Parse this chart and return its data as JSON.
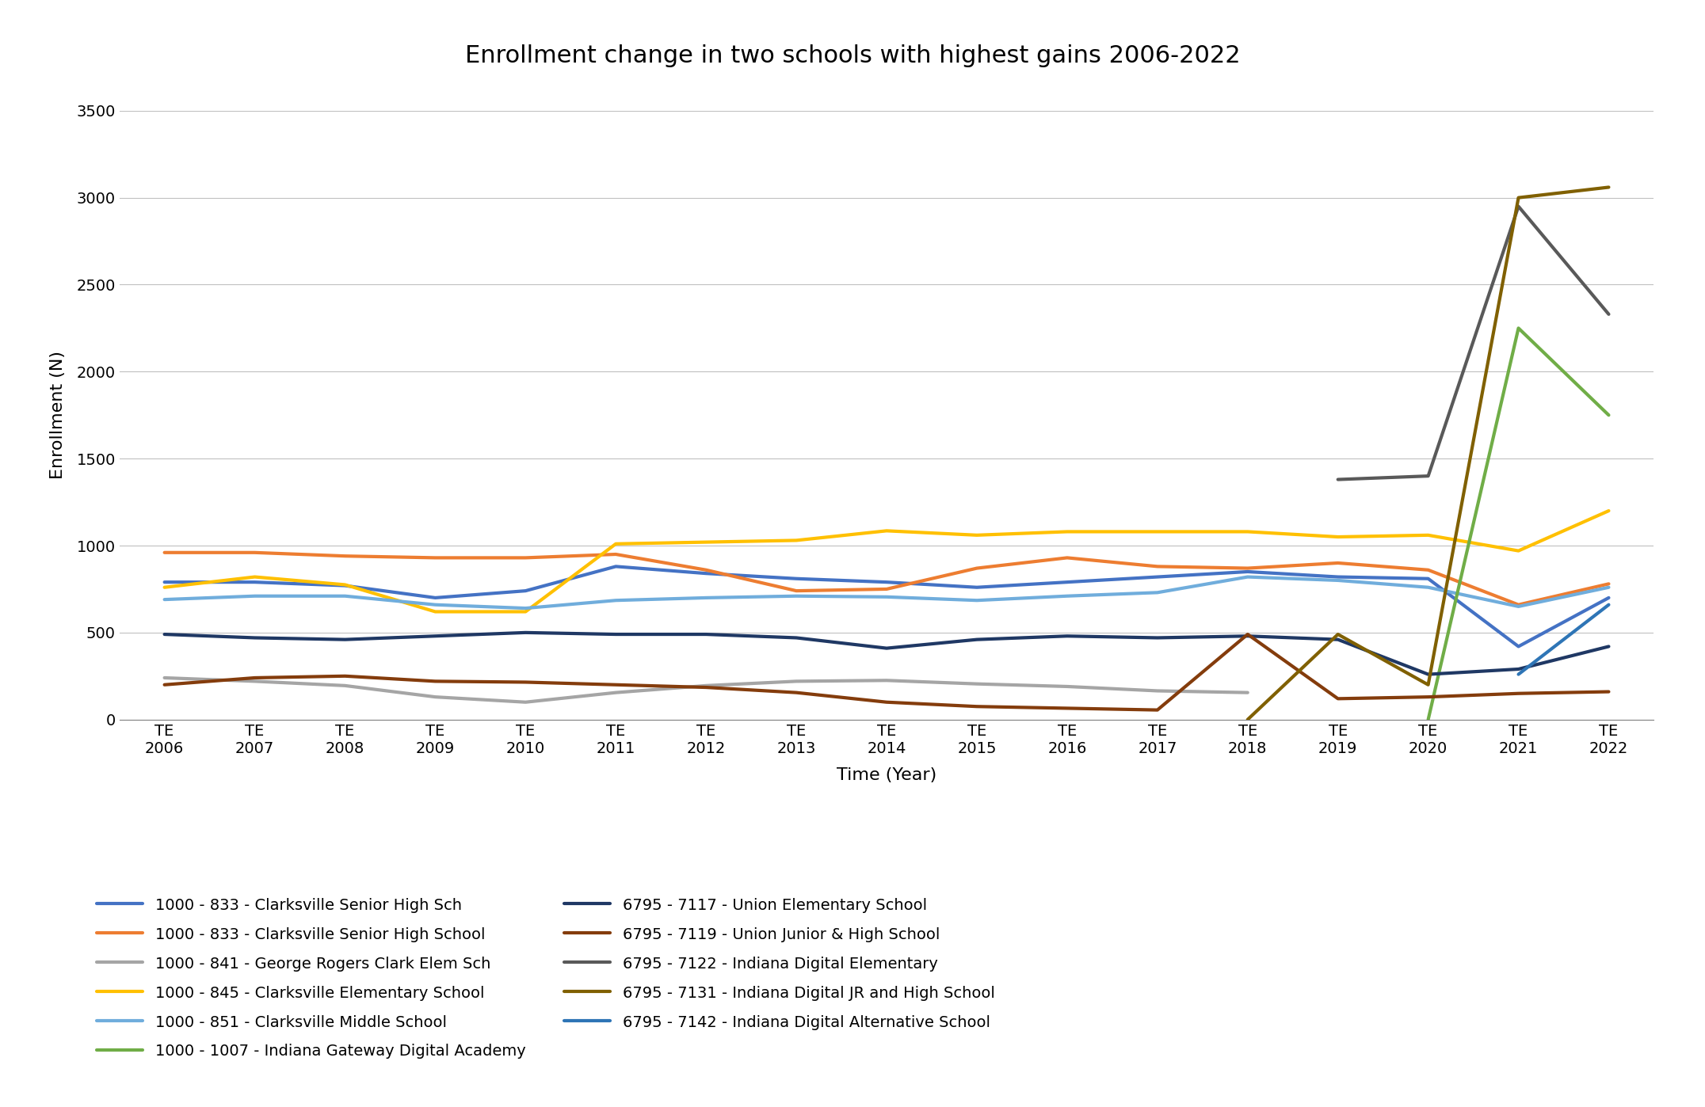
{
  "title": "Enrollment change in two schools with highest gains 2006-2022",
  "xlabel": "Time (Year)",
  "ylabel": "Enrollment (N)",
  "year_vals": [
    2006,
    2007,
    2008,
    2009,
    2010,
    2011,
    2012,
    2013,
    2014,
    2015,
    2016,
    2017,
    2018,
    2019,
    2020,
    2021,
    2022
  ],
  "ylim": [
    0,
    3500
  ],
  "yticks": [
    0,
    500,
    1000,
    1500,
    2000,
    2500,
    3000,
    3500
  ],
  "series": [
    {
      "label": "1000 - 833 - Clarksville Senior High Sch",
      "color": "#4472C4",
      "linewidth": 3.0,
      "data": [
        790,
        790,
        770,
        700,
        740,
        880,
        840,
        810,
        790,
        760,
        790,
        820,
        850,
        820,
        810,
        420,
        700
      ]
    },
    {
      "label": "1000 - 833 - Clarksville Senior High School",
      "color": "#ED7D31",
      "linewidth": 3.0,
      "data": [
        960,
        960,
        940,
        930,
        930,
        950,
        860,
        740,
        750,
        870,
        930,
        880,
        870,
        900,
        860,
        660,
        780
      ]
    },
    {
      "label": "1000 - 841 - George Rogers Clark Elem Sch",
      "color": "#A5A5A5",
      "linewidth": 3.0,
      "data": [
        240,
        220,
        195,
        130,
        100,
        155,
        195,
        220,
        225,
        205,
        190,
        165,
        155,
        null,
        null,
        null,
        null
      ]
    },
    {
      "label": "1000 - 845 - Clarksville Elementary School",
      "color": "#FFC000",
      "linewidth": 3.0,
      "data": [
        760,
        820,
        775,
        620,
        620,
        1010,
        1020,
        1030,
        1085,
        1060,
        1080,
        1080,
        1080,
        1050,
        1060,
        970,
        1200
      ]
    },
    {
      "label": "1000 - 851 - Clarksville Middle School",
      "color": "#70ADDC",
      "linewidth": 3.0,
      "data": [
        690,
        710,
        710,
        660,
        640,
        685,
        700,
        710,
        705,
        685,
        710,
        730,
        820,
        800,
        760,
        650,
        760
      ]
    },
    {
      "label": "1000 - 1007 - Indiana Gateway Digital Academy",
      "color": "#70AD47",
      "linewidth": 3.0,
      "data": [
        null,
        null,
        null,
        null,
        null,
        null,
        null,
        null,
        null,
        null,
        null,
        null,
        null,
        null,
        0,
        2250,
        1750
      ]
    },
    {
      "label": "6795 - 7117 - Union Elementary School",
      "color": "#1F3864",
      "linewidth": 3.0,
      "data": [
        490,
        470,
        460,
        480,
        500,
        490,
        490,
        470,
        410,
        460,
        480,
        470,
        480,
        460,
        260,
        290,
        420
      ]
    },
    {
      "label": "6795 - 7119 - Union Junior & High School",
      "color": "#843C0C",
      "linewidth": 3.0,
      "data": [
        200,
        240,
        250,
        220,
        215,
        200,
        185,
        155,
        100,
        75,
        65,
        55,
        490,
        120,
        130,
        150,
        160
      ]
    },
    {
      "label": "6795 - 7122 - Indiana Digital Elementary",
      "color": "#595959",
      "linewidth": 3.0,
      "data": [
        null,
        null,
        null,
        null,
        null,
        null,
        null,
        null,
        null,
        null,
        null,
        null,
        null,
        1380,
        1400,
        2950,
        2330
      ]
    },
    {
      "label": "6795 - 7131 - Indiana Digital JR and High School",
      "color": "#806000",
      "linewidth": 3.0,
      "data": [
        null,
        null,
        null,
        null,
        null,
        null,
        null,
        null,
        null,
        null,
        null,
        null,
        0,
        490,
        200,
        3000,
        3060
      ]
    },
    {
      "label": "6795 - 7142 - Indiana Digital Alternative School",
      "color": "#2E75B6",
      "linewidth": 3.0,
      "data": [
        null,
        null,
        null,
        null,
        null,
        null,
        null,
        null,
        null,
        null,
        null,
        null,
        null,
        null,
        null,
        260,
        660
      ]
    }
  ],
  "legend_order": [
    0,
    1,
    2,
    3,
    4,
    5,
    6,
    7,
    8,
    9,
    10
  ]
}
